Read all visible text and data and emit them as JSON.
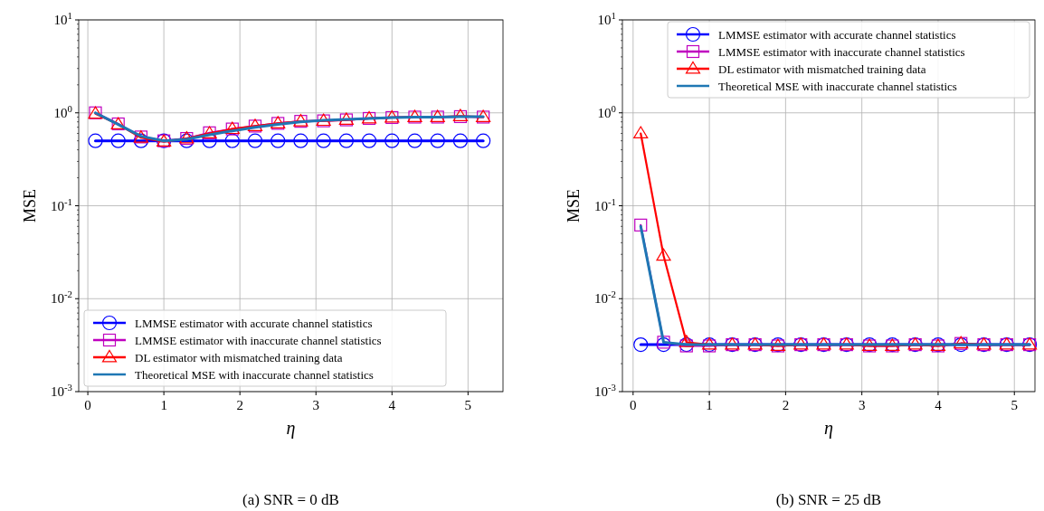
{
  "chart_data": [
    {
      "type": "line",
      "xlabel": "η",
      "ylabel": "MSE",
      "annotations": [
        "(a) SNR = 0 dB"
      ],
      "log": "y",
      "grid": true,
      "legend": "bottom left",
      "line_style": "solid",
      "x": [
        0.1,
        0.4,
        0.7,
        1.0,
        1.3,
        1.6,
        1.9,
        2.2,
        2.5,
        2.8,
        3.1,
        3.4,
        3.7,
        4.0,
        4.3,
        4.6,
        4.9,
        5.2
      ],
      "xlim": [
        -0.12,
        5.46
      ],
      "xticks": [
        0,
        1,
        2,
        3,
        4,
        5
      ],
      "ylim": [
        0.001,
        10
      ],
      "yticks": [
        {
          "value": 0.001,
          "label": "10$^{-3}$"
        },
        {
          "value": 0.01,
          "label": "10$^{-2}$"
        },
        {
          "value": 0.1,
          "label": "10$^{-1}$"
        },
        {
          "value": 1,
          "label": "10$^{0}$"
        },
        {
          "value": 10,
          "label": "10$^{1}$"
        }
      ],
      "series": [
        {
          "name": "LMMSE estimator with accurate channel statistics",
          "color": "#0000ff",
          "marker": "circle",
          "values": [
            0.5,
            0.5,
            0.5,
            0.5,
            0.5,
            0.5,
            0.5,
            0.5,
            0.5,
            0.5,
            0.5,
            0.5,
            0.5,
            0.5,
            0.5,
            0.5,
            0.5,
            0.5
          ]
        },
        {
          "name": "LMMSE estimator with inaccurate channel statistics",
          "color": "#bf00bf",
          "marker": "square",
          "values": [
            1.0,
            0.76,
            0.55,
            0.5,
            0.53,
            0.61,
            0.67,
            0.72,
            0.77,
            0.81,
            0.82,
            0.84,
            0.87,
            0.89,
            0.9,
            0.9,
            0.91,
            0.9
          ]
        },
        {
          "name": "DL estimator with mismatched training data",
          "color": "#ff0000",
          "marker": "triangle",
          "values": [
            0.98,
            0.75,
            0.54,
            0.49,
            0.53,
            0.6,
            0.67,
            0.72,
            0.77,
            0.81,
            0.82,
            0.84,
            0.87,
            0.89,
            0.9,
            0.9,
            0.92,
            0.9
          ]
        },
        {
          "name": "Theoretical MSE with inaccurate channel statistics",
          "color": "#1f77b4",
          "marker": "none",
          "values": [
            1.0,
            0.75,
            0.56,
            0.5,
            0.52,
            0.58,
            0.64,
            0.7,
            0.75,
            0.8,
            0.83,
            0.85,
            0.87,
            0.89,
            0.9,
            0.9,
            0.91,
            0.91
          ]
        }
      ]
    },
    {
      "type": "line",
      "xlabel": "η",
      "ylabel": "MSE",
      "annotations": [
        "(b) SNR = 25 dB"
      ],
      "log": "y",
      "grid": true,
      "legend": "top right",
      "line_style": "solid",
      "x": [
        0.1,
        0.4,
        0.7,
        1.0,
        1.3,
        1.6,
        1.9,
        2.2,
        2.5,
        2.8,
        3.1,
        3.4,
        3.7,
        4.0,
        4.3,
        4.6,
        4.9,
        5.2
      ],
      "xlim": [
        -0.14,
        5.27
      ],
      "xticks": [
        0,
        1,
        2,
        3,
        4,
        5
      ],
      "ylim": [
        0.001,
        10
      ],
      "yticks": [
        {
          "value": 0.001,
          "label": "10$^{-3}$"
        },
        {
          "value": 0.01,
          "label": "10$^{-2}$"
        },
        {
          "value": 0.1,
          "label": "10$^{-1}$"
        },
        {
          "value": 1,
          "label": "10$^{0}$"
        },
        {
          "value": 10,
          "label": "10$^{1}$"
        }
      ],
      "series": [
        {
          "name": "LMMSE estimator with accurate channel statistics",
          "color": "#0000ff",
          "marker": "circle",
          "values": [
            0.0032,
            0.0032,
            0.0032,
            0.0032,
            0.0032,
            0.0032,
            0.0032,
            0.0032,
            0.0032,
            0.0032,
            0.0032,
            0.0032,
            0.0032,
            0.0032,
            0.0032,
            0.0032,
            0.0032,
            0.0032
          ]
        },
        {
          "name": "LMMSE estimator with inaccurate channel statistics",
          "color": "#bf00bf",
          "marker": "square",
          "values": [
            0.062,
            0.0034,
            0.0031,
            0.0031,
            0.0032,
            0.0032,
            0.0031,
            0.0032,
            0.0032,
            0.0032,
            0.0031,
            0.0031,
            0.0032,
            0.0031,
            0.0033,
            0.0032,
            0.0032,
            0.0032
          ]
        },
        {
          "name": "DL estimator with mismatched training data",
          "color": "#ff0000",
          "marker": "triangle",
          "values": [
            0.6,
            0.029,
            0.0034,
            0.0032,
            0.0032,
            0.0032,
            0.0031,
            0.0032,
            0.0032,
            0.0032,
            0.0031,
            0.0031,
            0.0032,
            0.0031,
            0.0033,
            0.0032,
            0.0032,
            0.0032
          ]
        },
        {
          "name": "Theoretical MSE with inaccurate channel statistics",
          "color": "#1f77b4",
          "marker": "none",
          "values": [
            0.06,
            0.0034,
            0.0032,
            0.0032,
            0.0032,
            0.0032,
            0.0032,
            0.0032,
            0.0032,
            0.0032,
            0.0032,
            0.0032,
            0.0032,
            0.0032,
            0.0032,
            0.0032,
            0.0032,
            0.0032
          ]
        }
      ]
    }
  ]
}
